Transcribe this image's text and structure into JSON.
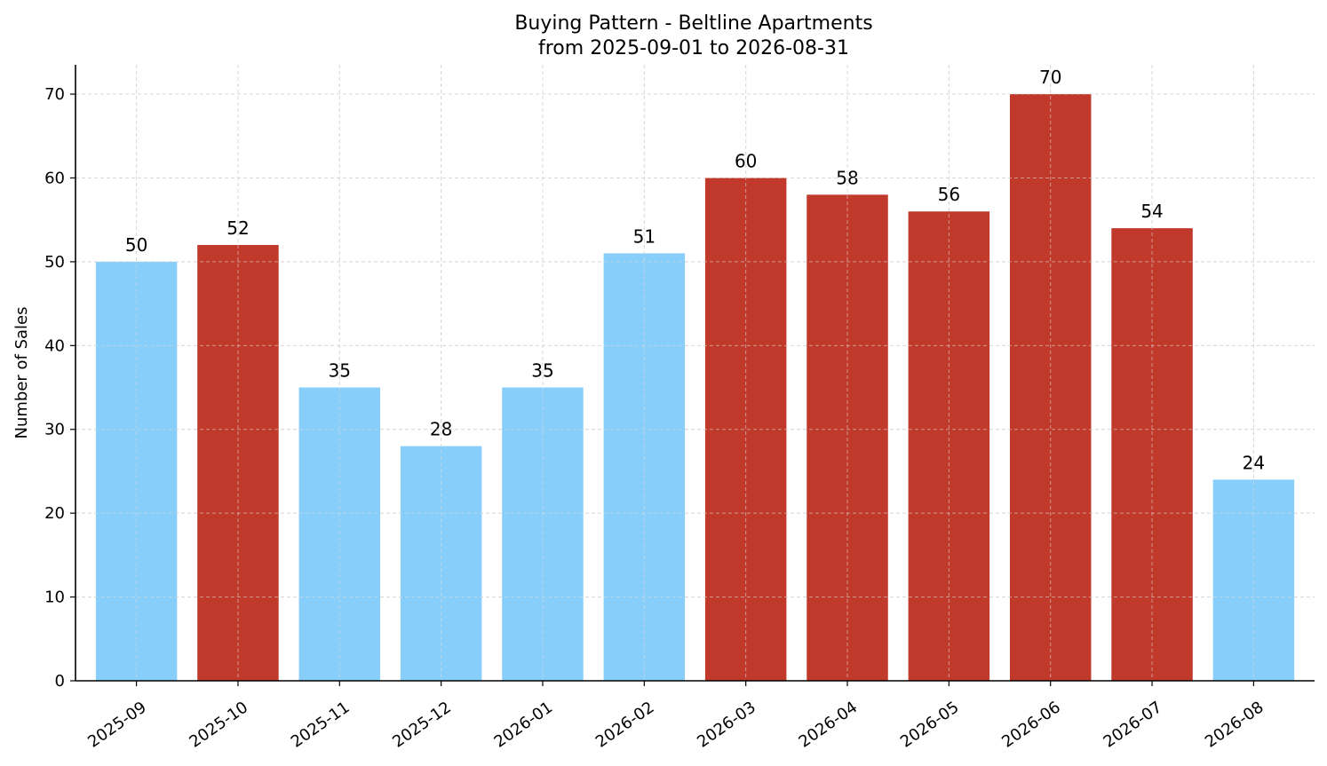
{
  "chart_data": {
    "type": "bar",
    "title": "Buying Pattern - Beltline Apartments",
    "subtitle": "from 2025-09-01 to 2026-08-31",
    "xlabel": "",
    "ylabel": "Number of Sales",
    "categories": [
      "2025-09",
      "2025-10",
      "2025-11",
      "2025-12",
      "2026-01",
      "2026-02",
      "2026-03",
      "2026-04",
      "2026-05",
      "2026-06",
      "2026-07",
      "2026-08"
    ],
    "values": [
      50,
      52,
      35,
      28,
      35,
      51,
      60,
      58,
      56,
      70,
      54,
      24
    ],
    "bar_colors": [
      "#87CEFA",
      "#C0392B",
      "#87CEFA",
      "#87CEFA",
      "#87CEFA",
      "#87CEFA",
      "#C0392B",
      "#C0392B",
      "#C0392B",
      "#C0392B",
      "#C0392B",
      "#87CEFA"
    ],
    "ylim": [
      0,
      73.5
    ],
    "yticks": [
      0,
      10,
      20,
      30,
      40,
      50,
      60,
      70
    ],
    "grid": true,
    "data_labels": true,
    "colors": {
      "light": "#87CEFA",
      "dark": "#C0392B",
      "grid": "#d9d9d9",
      "axis": "#000000"
    }
  }
}
